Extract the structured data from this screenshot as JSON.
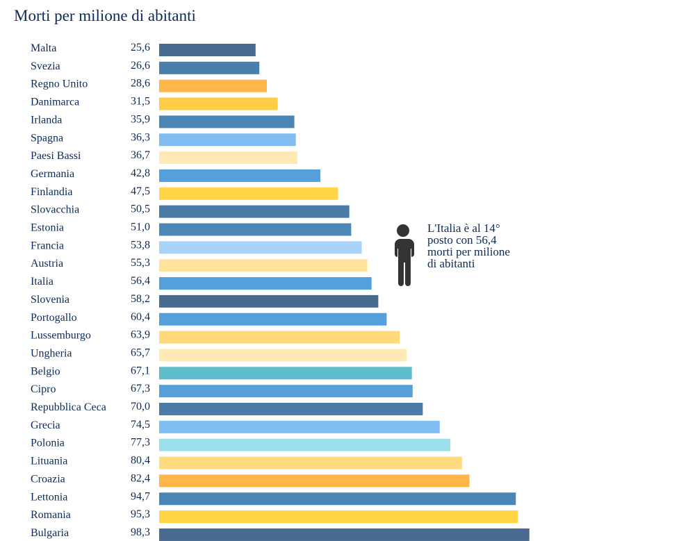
{
  "title": "Morti per milione di abitanti",
  "annotation": {
    "lines": [
      "L'Italia è al 14°",
      "posto con 56,4",
      "morti per milione",
      "di abitanti"
    ],
    "icon": "person-icon"
  },
  "chart_data": {
    "type": "bar",
    "orientation": "horizontal",
    "title": "Morti per milione di abitanti",
    "xlabel": "",
    "ylabel": "",
    "xlim": [
      0,
      100
    ],
    "grid": false,
    "legend": "none",
    "categories": [
      "Malta",
      "Svezia",
      "Regno Unito",
      "Danimarca",
      "Irlanda",
      "Spagna",
      "Paesi Bassi",
      "Germania",
      "Finlandia",
      "Slovacchia",
      "Estonia",
      "Francia",
      "Austria",
      "Italia",
      "Slovenia",
      "Portogallo",
      "Lussemburgo",
      "Ungheria",
      "Belgio",
      "Cipro",
      "Repubblica Ceca",
      "Grecia",
      "Polonia",
      "Lituania",
      "Croazia",
      "Lettonia",
      "Romania",
      "Bulgaria"
    ],
    "values": [
      25.6,
      26.6,
      28.6,
      31.5,
      35.9,
      36.3,
      36.7,
      42.8,
      47.5,
      50.5,
      51.0,
      53.8,
      55.3,
      56.4,
      58.2,
      60.4,
      63.9,
      65.7,
      67.1,
      67.3,
      70.0,
      74.5,
      77.3,
      80.4,
      82.4,
      94.7,
      95.3,
      98.3
    ],
    "value_labels": [
      "25,6",
      "26,6",
      "28,6",
      "31,5",
      "35,9",
      "36,3",
      "36,7",
      "42,8",
      "47,5",
      "50,5",
      "51,0",
      "53,8",
      "55,3",
      "56,4",
      "58,2",
      "60,4",
      "63,9",
      "65,7",
      "67,1",
      "67,3",
      "70,0",
      "74,5",
      "77,3",
      "80,4",
      "82,4",
      "94,7",
      "95,3",
      "98,3"
    ],
    "colors": [
      "#4a6b90",
      "#4a7eab",
      "#ffb547",
      "#ffcc47",
      "#4a86b5",
      "#7fbdf2",
      "#ffeab5",
      "#559fdb",
      "#ffd447",
      "#4a7aa6",
      "#4c87b8",
      "#a9d3f7",
      "#ffe39c",
      "#559fdb",
      "#4a6b90",
      "#559fdb",
      "#ffd97a",
      "#ffeab5",
      "#5ebdcc",
      "#559fdb",
      "#4a7aa6",
      "#7fbdf2",
      "#9be0ea",
      "#ffdb7f",
      "#ffb547",
      "#4a86b5",
      "#ffd447",
      "#4a6b90"
    ]
  }
}
